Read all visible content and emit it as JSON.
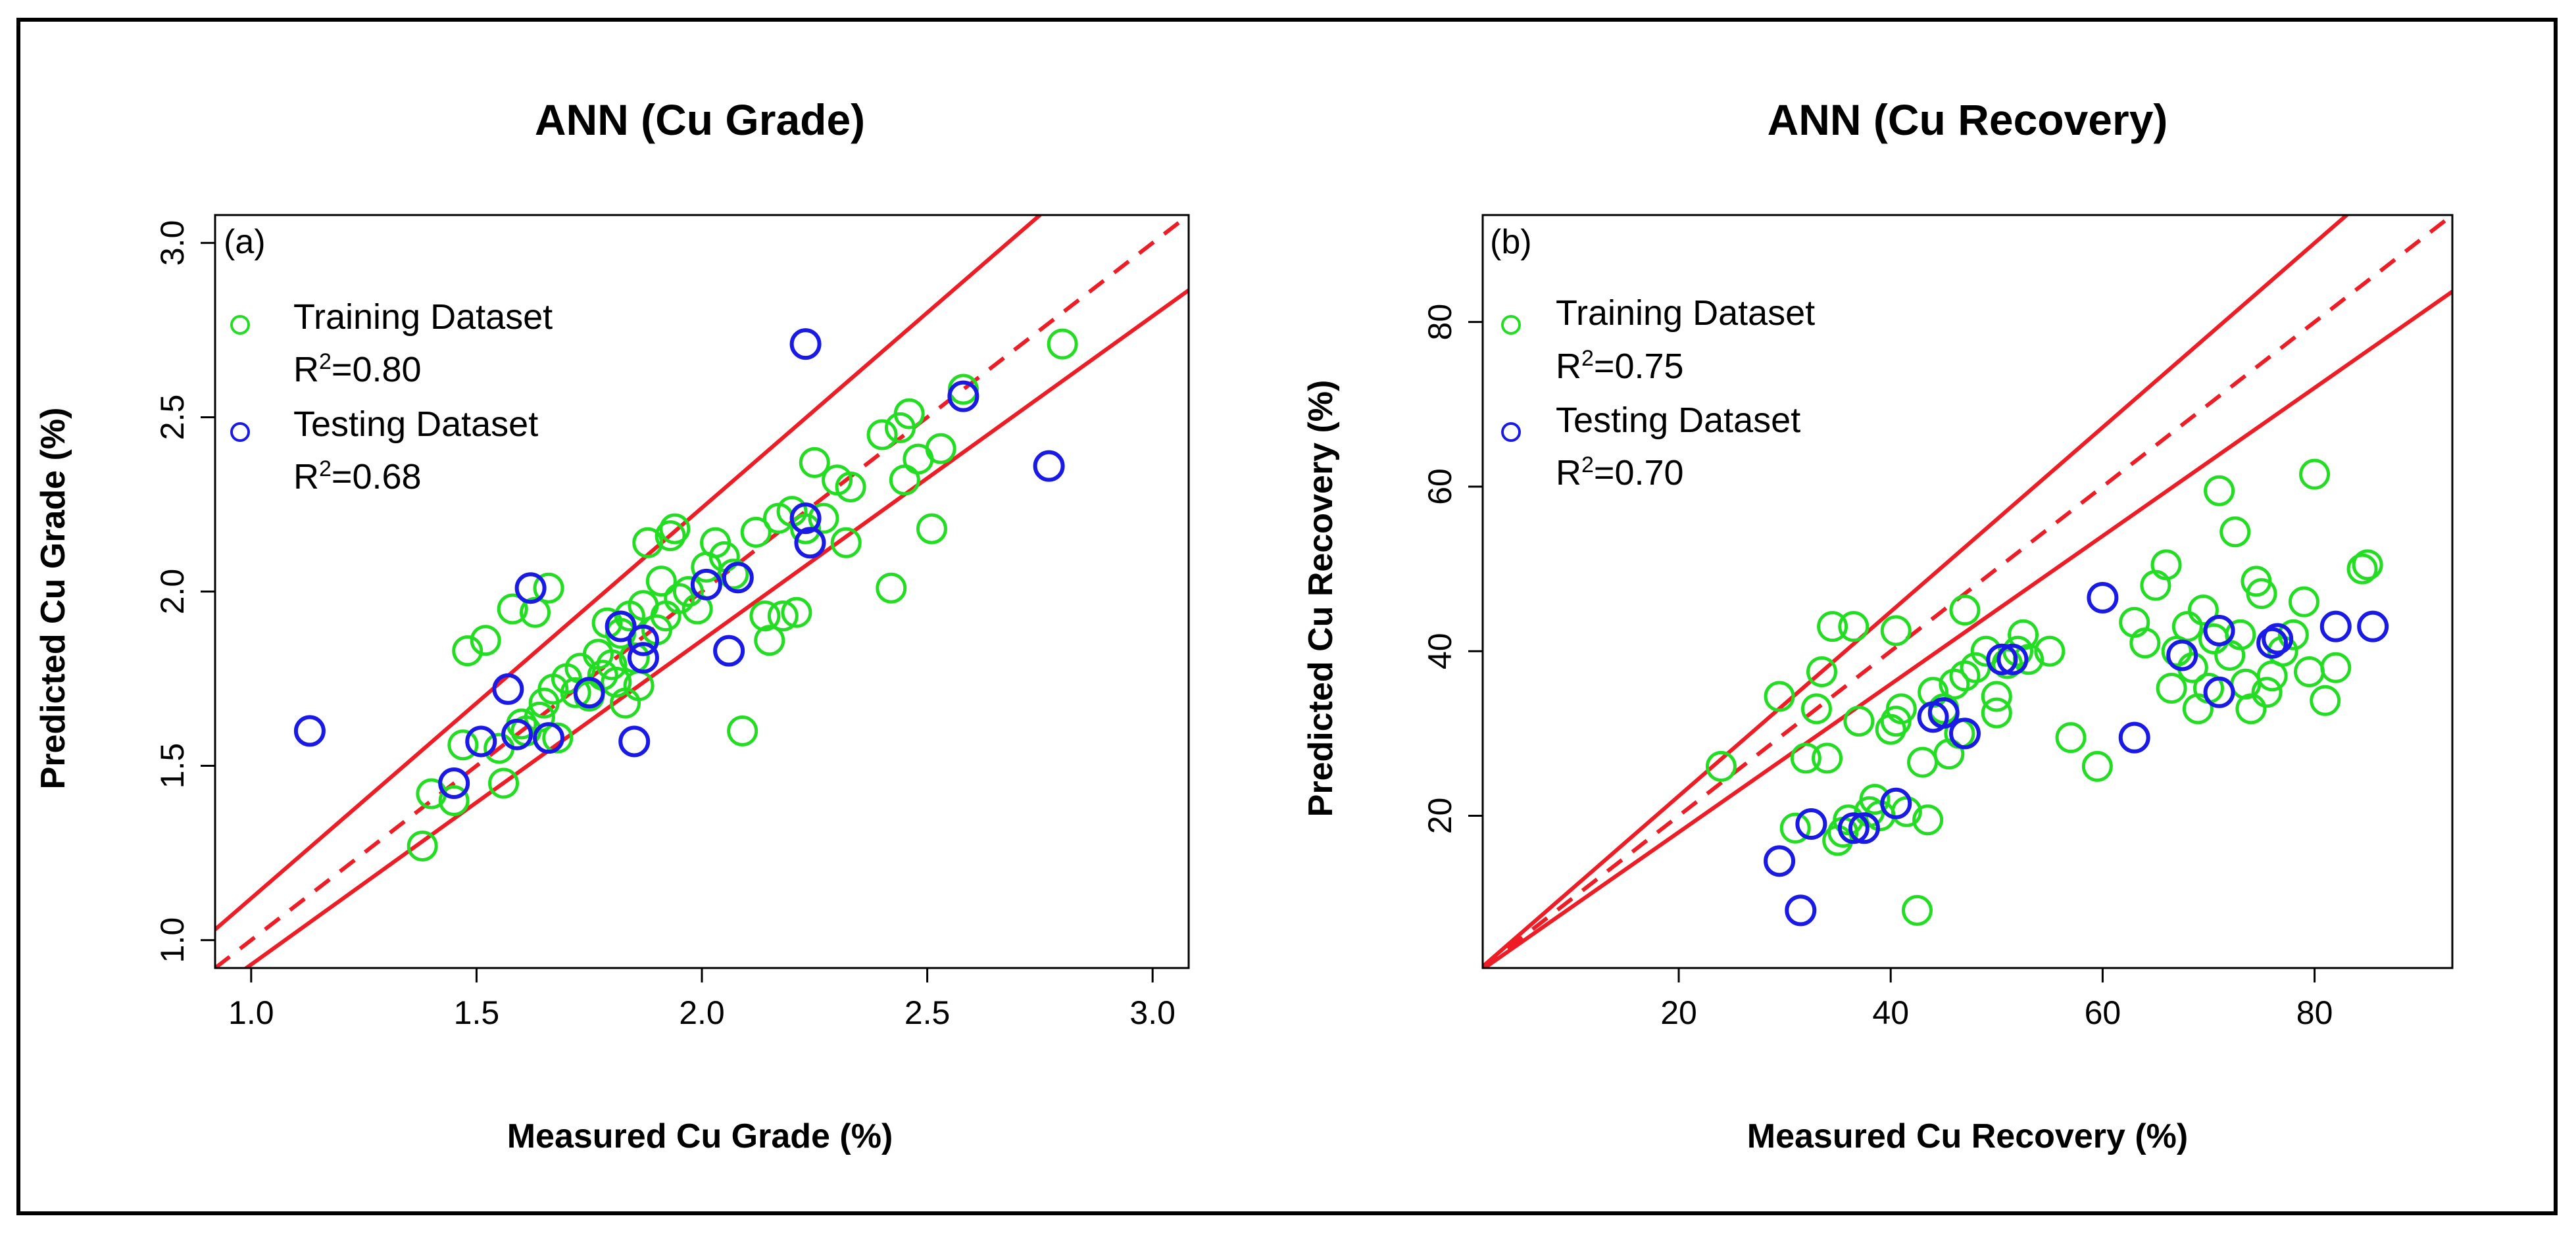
{
  "chart_data": [
    {
      "type": "scatter",
      "tag": "(a)",
      "title": "ANN (Cu Grade)",
      "xlabel": "Measured Cu Grade (%)",
      "ylabel": "Predicted Cu Grade (%)",
      "xlim": [
        0.92,
        3.08
      ],
      "ylim": [
        0.92,
        3.08
      ],
      "xticks": [
        1.0,
        1.5,
        2.0,
        2.5,
        3.0
      ],
      "yticks": [
        1.0,
        1.5,
        2.0,
        2.5,
        3.0
      ],
      "xtick_labels": [
        "1.0",
        "1.5",
        "2.0",
        "2.5",
        "3.0"
      ],
      "ytick_labels": [
        "1.0",
        "1.5",
        "2.0",
        "2.5",
        "3.0"
      ],
      "lines": [
        {
          "name": "1:1",
          "style": "dashed",
          "color": "#ee1c25",
          "slope": 1.0
        },
        {
          "name": "upper bound",
          "style": "solid",
          "color": "#ee1c25",
          "slope": 1.12
        },
        {
          "name": "lower bound",
          "style": "solid",
          "color": "#ee1c25",
          "slope": 0.93
        }
      ],
      "legend": [
        {
          "label": "Training Dataset",
          "r2_prefix": "R",
          "r2_sup": "2",
          "r2_value": "=0.80",
          "color": "#22dd22"
        },
        {
          "label": "Testing Dataset",
          "r2_prefix": "R",
          "r2_sup": "2",
          "r2_value": "=0.68",
          "color": "#1a1ae6"
        }
      ],
      "series": [
        {
          "name": "Training Dataset",
          "color": "#22dd22",
          "points": [
            [
              1.38,
              1.27
            ],
            [
              1.4,
              1.42
            ],
            [
              1.45,
              1.4
            ],
            [
              1.47,
              1.56
            ],
            [
              1.48,
              1.83
            ],
            [
              1.52,
              1.86
            ],
            [
              1.55,
              1.55
            ],
            [
              1.56,
              1.45
            ],
            [
              1.58,
              1.95
            ],
            [
              1.6,
              1.62
            ],
            [
              1.61,
              1.6
            ],
            [
              1.63,
              1.94
            ],
            [
              1.64,
              1.64
            ],
            [
              1.65,
              1.68
            ],
            [
              1.66,
              2.01
            ],
            [
              1.67,
              1.72
            ],
            [
              1.68,
              1.58
            ],
            [
              1.7,
              1.75
            ],
            [
              1.72,
              1.71
            ],
            [
              1.73,
              1.78
            ],
            [
              1.75,
              1.7
            ],
            [
              1.77,
              1.82
            ],
            [
              1.78,
              1.76
            ],
            [
              1.79,
              1.91
            ],
            [
              1.8,
              1.79
            ],
            [
              1.81,
              1.74
            ],
            [
              1.82,
              1.88
            ],
            [
              1.83,
              1.68
            ],
            [
              1.84,
              1.93
            ],
            [
              1.85,
              1.81
            ],
            [
              1.86,
              1.73
            ],
            [
              1.87,
              1.96
            ],
            [
              1.88,
              2.14
            ],
            [
              1.9,
              1.89
            ],
            [
              1.91,
              2.03
            ],
            [
              1.92,
              1.93
            ],
            [
              1.93,
              2.16
            ],
            [
              1.94,
              2.18
            ],
            [
              1.95,
              1.98
            ],
            [
              1.97,
              2.0
            ],
            [
              1.99,
              1.95
            ],
            [
              2.01,
              2.07
            ],
            [
              2.03,
              2.14
            ],
            [
              2.05,
              2.1
            ],
            [
              2.07,
              2.05
            ],
            [
              2.09,
              1.6
            ],
            [
              2.12,
              2.17
            ],
            [
              2.14,
              1.93
            ],
            [
              2.15,
              1.86
            ],
            [
              2.17,
              2.21
            ],
            [
              2.18,
              1.93
            ],
            [
              2.2,
              2.23
            ],
            [
              2.21,
              1.94
            ],
            [
              2.23,
              2.18
            ],
            [
              2.25,
              2.37
            ],
            [
              2.27,
              2.21
            ],
            [
              2.3,
              2.32
            ],
            [
              2.32,
              2.14
            ],
            [
              2.33,
              2.3
            ],
            [
              2.4,
              2.45
            ],
            [
              2.42,
              2.01
            ],
            [
              2.44,
              2.47
            ],
            [
              2.45,
              2.32
            ],
            [
              2.46,
              2.51
            ],
            [
              2.48,
              2.38
            ],
            [
              2.51,
              2.18
            ],
            [
              2.53,
              2.41
            ],
            [
              2.58,
              2.58
            ],
            [
              2.8,
              2.71
            ]
          ]
        },
        {
          "name": "Testing Dataset",
          "color": "#1a1ae6",
          "points": [
            [
              1.13,
              1.6
            ],
            [
              1.45,
              1.45
            ],
            [
              1.51,
              1.57
            ],
            [
              1.57,
              1.72
            ],
            [
              1.59,
              1.59
            ],
            [
              1.62,
              2.01
            ],
            [
              1.66,
              1.58
            ],
            [
              1.75,
              1.71
            ],
            [
              1.82,
              1.9
            ],
            [
              1.85,
              1.57
            ],
            [
              1.87,
              1.86
            ],
            [
              1.87,
              1.81
            ],
            [
              2.01,
              2.02
            ],
            [
              2.06,
              1.83
            ],
            [
              2.08,
              2.04
            ],
            [
              2.23,
              2.71
            ],
            [
              2.23,
              2.21
            ],
            [
              2.24,
              2.14
            ],
            [
              2.58,
              2.56
            ],
            [
              2.77,
              2.36
            ]
          ]
        }
      ]
    },
    {
      "type": "scatter",
      "tag": "(b)",
      "title": "ANN (Cu Recovery)",
      "xlabel": "Measured Cu Recovery (%)",
      "ylabel": "Predicted Cu Recovery (%)",
      "xlim": [
        1.5,
        93
      ],
      "ylim": [
        1.5,
        93
      ],
      "xticks": [
        20,
        40,
        60,
        80
      ],
      "yticks": [
        20,
        40,
        60,
        80
      ],
      "xtick_labels": [
        "20",
        "40",
        "60",
        "80"
      ],
      "ytick_labels": [
        "20",
        "40",
        "60",
        "80"
      ],
      "lines": [
        {
          "name": "1:1",
          "style": "dashed",
          "color": "#ee1c25",
          "slope": 1.0
        },
        {
          "name": "upper bound",
          "style": "solid",
          "color": "#ee1c25",
          "slope": 1.12
        },
        {
          "name": "lower bound",
          "style": "solid",
          "color": "#ee1c25",
          "slope": 0.9
        }
      ],
      "legend": [
        {
          "label": "Training Dataset",
          "r2_prefix": "R",
          "r2_sup": "2",
          "r2_value": "=0.75",
          "color": "#22dd22"
        },
        {
          "label": "Testing Dataset",
          "r2_prefix": "R",
          "r2_sup": "2",
          "r2_value": "=0.70",
          "color": "#1a1ae6"
        }
      ],
      "series": [
        {
          "name": "Training Dataset",
          "color": "#22dd22",
          "points": [
            [
              24,
              26
            ],
            [
              29.5,
              34.5
            ],
            [
              31,
              18.5
            ],
            [
              32,
              27
            ],
            [
              33,
              33
            ],
            [
              33.5,
              37.5
            ],
            [
              34,
              27
            ],
            [
              34.5,
              43
            ],
            [
              35,
              17
            ],
            [
              35.5,
              18
            ],
            [
              36,
              19.5
            ],
            [
              36.5,
              43
            ],
            [
              37,
              31.5
            ],
            [
              38,
              20.5
            ],
            [
              38.5,
              22
            ],
            [
              39,
              20
            ],
            [
              40,
              30.5
            ],
            [
              40.5,
              31.5
            ],
            [
              40.5,
              42.5
            ],
            [
              41,
              33
            ],
            [
              41.5,
              20.5
            ],
            [
              42.5,
              8.5
            ],
            [
              43,
              26.5
            ],
            [
              43.5,
              19.5
            ],
            [
              44,
              35
            ],
            [
              45,
              33
            ],
            [
              45.5,
              27.5
            ],
            [
              46,
              36
            ],
            [
              46.5,
              30
            ],
            [
              47,
              37
            ],
            [
              47,
              45
            ],
            [
              48,
              38
            ],
            [
              49,
              40
            ],
            [
              50,
              32.5
            ],
            [
              50,
              34.5
            ],
            [
              51,
              38.5
            ],
            [
              52,
              40
            ],
            [
              52.5,
              42
            ],
            [
              53,
              39
            ],
            [
              55,
              40
            ],
            [
              57,
              29.5
            ],
            [
              59.5,
              26
            ],
            [
              63,
              43.5
            ],
            [
              64,
              41
            ],
            [
              65,
              48
            ],
            [
              66,
              50.5
            ],
            [
              66.5,
              35.5
            ],
            [
              67,
              40
            ],
            [
              68,
              43
            ],
            [
              68.5,
              38
            ],
            [
              69,
              33
            ],
            [
              69.5,
              45
            ],
            [
              70,
              35.5
            ],
            [
              70.5,
              41.5
            ],
            [
              71,
              59.5
            ],
            [
              72,
              39.5
            ],
            [
              72.5,
              54.5
            ],
            [
              73,
              42
            ],
            [
              73.5,
              36
            ],
            [
              74,
              33
            ],
            [
              74.5,
              48.5
            ],
            [
              75,
              47
            ],
            [
              75.5,
              35
            ],
            [
              76,
              37
            ],
            [
              77,
              40
            ],
            [
              78,
              42
            ],
            [
              79,
              46
            ],
            [
              79.5,
              37.5
            ],
            [
              80,
              61.5
            ],
            [
              81,
              34
            ],
            [
              82,
              38
            ],
            [
              84.5,
              50
            ],
            [
              85,
              50.5
            ]
          ]
        },
        {
          "name": "Testing Dataset",
          "color": "#1a1ae6",
          "points": [
            [
              29.5,
              14.5
            ],
            [
              31.5,
              8.5
            ],
            [
              32.5,
              19
            ],
            [
              36.5,
              18.5
            ],
            [
              37.5,
              18.5
            ],
            [
              40.5,
              21.5
            ],
            [
              44,
              32
            ],
            [
              45,
              32.5
            ],
            [
              47,
              30
            ],
            [
              50.5,
              39
            ],
            [
              51.5,
              39
            ],
            [
              60,
              46.5
            ],
            [
              63,
              29.5
            ],
            [
              67.5,
              39.5
            ],
            [
              71,
              35
            ],
            [
              71,
              42.5
            ],
            [
              76,
              41
            ],
            [
              76.5,
              41.5
            ],
            [
              82,
              43
            ],
            [
              85.5,
              43
            ]
          ]
        }
      ]
    }
  ]
}
